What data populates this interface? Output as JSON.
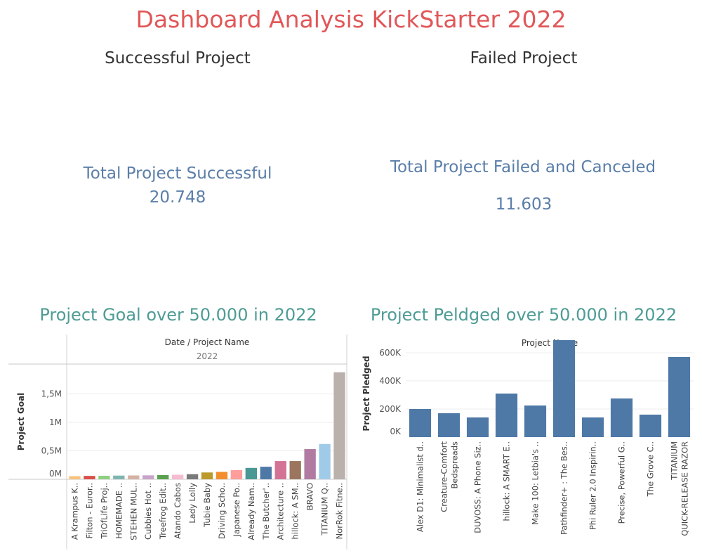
{
  "dashboard": {
    "title": "Dashboard Analysis KickStarter 2022",
    "successful": {
      "title": "Successful Project",
      "label": "Total Project Successful",
      "value": "20.748"
    },
    "failed": {
      "title": "Failed Project",
      "label": "Total Project Failed and Canceled",
      "value": "11.603"
    }
  },
  "chart_data": [
    {
      "type": "bar",
      "title": "Project Goal over 50.000 in 2022",
      "header": "Date / Project Name",
      "subheader": "2022",
      "ylabel": "Project Goal",
      "ylim": [
        0,
        1950000
      ],
      "ytick_values": [
        0,
        500000,
        1000000,
        1500000
      ],
      "ytick_labels": [
        "0M",
        "0,5M",
        "1M",
        "1,5M"
      ],
      "categories": [
        "A Krampus K..",
        "Filton - Euror..",
        "TriOfLife Proj..",
        "HOMEMADE ..",
        "STEHEN MUL..",
        "Cubbies Hot ..",
        "Treefrog Edit..",
        "Atando Cabos",
        "Lady Lolly",
        "Tubie Baby",
        "Driving Scho..",
        "Japanese Po..",
        "Already Nam..",
        "The Butcher'..",
        "Architecture ..",
        "hillock: A SM..",
        "BRAVO",
        "TITANIUM Q..",
        "NorRok Fitne.."
      ],
      "values": [
        55000,
        60000,
        62000,
        65000,
        68000,
        70000,
        75000,
        80000,
        90000,
        120000,
        130000,
        160000,
        200000,
        220000,
        320000,
        320000,
        530000,
        620000,
        1880000
      ],
      "colors": [
        "#f8c27c",
        "#d94f4a",
        "#8fcf82",
        "#7fb5b0",
        "#d6b2a5",
        "#c9a3c9",
        "#59a14f",
        "#f5bcd0",
        "#7a7a7a",
        "#b99a2b",
        "#f28e2b",
        "#ff9d9a",
        "#499894",
        "#4e79a7",
        "#d37295",
        "#9c755f",
        "#b07aa1",
        "#a0cbe8",
        "#bab0ac"
      ]
    },
    {
      "type": "bar",
      "title": "Project Peldged over 50.000 in 2022",
      "header": "Project Name",
      "ylabel": "Project Pledged",
      "ylim": [
        0,
        650000
      ],
      "ytick_values": [
        0,
        200000,
        400000,
        600000
      ],
      "ytick_labels": [
        "0K",
        "200K",
        "400K",
        "600K"
      ],
      "categories": [
        "Alex D1: Minimalist d..",
        "Creature-Comfort Bedspreads",
        "DUVOSS: A Phone Siz..",
        "hillock: A SMART E..",
        "Make 100: Letbia's ..",
        "Pathfinder+ : The Bes..",
        "Phi Ruler 2.0 Inspirin..",
        "Precise, Powerful G..",
        "The Grove C..",
        "TITANIUM QUICK-RELEASE RAZOR"
      ],
      "values": [
        200000,
        170000,
        140000,
        310000,
        225000,
        690000,
        140000,
        275000,
        160000,
        570000
      ],
      "color": "#4e79a7"
    }
  ]
}
